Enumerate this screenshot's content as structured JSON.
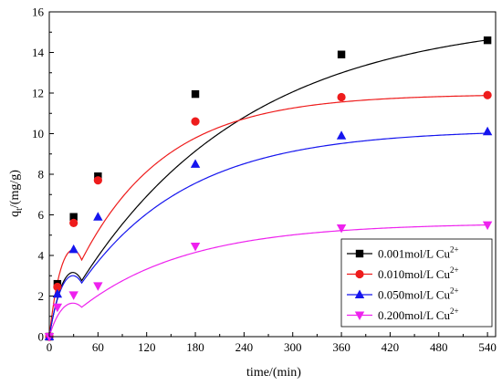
{
  "chart_data": {
    "type": "scatter",
    "xlabel": "time/(min)",
    "ylabel_main": "q",
    "ylabel_sub": "t",
    "ylabel_rest": "/(mg/g)",
    "xlim": [
      0,
      550
    ],
    "ylim": [
      0,
      16
    ],
    "xticks": [
      0,
      60,
      120,
      180,
      240,
      300,
      360,
      420,
      480,
      540
    ],
    "yticks": [
      0,
      2,
      4,
      6,
      8,
      10,
      12,
      14,
      16
    ],
    "grid": false,
    "legend_position": "bottom-right",
    "series": [
      {
        "name_main": "0.001mol/L Cu",
        "name_sup": "2+",
        "marker": "square",
        "color": "#000000",
        "points": [
          [
            0,
            0
          ],
          [
            10,
            2.6
          ],
          [
            30,
            5.9
          ],
          [
            60,
            7.9
          ],
          [
            180,
            11.95
          ],
          [
            360,
            13.9
          ],
          [
            540,
            14.6
          ]
        ],
        "fit_qe": 15.8,
        "fit_k": 0.0048
      },
      {
        "name_main": "0.010mol/L Cu",
        "name_sup": "2+",
        "marker": "circle",
        "color": "#ee1c1c",
        "points": [
          [
            0,
            0
          ],
          [
            10,
            2.45
          ],
          [
            30,
            5.6
          ],
          [
            60,
            7.7
          ],
          [
            180,
            10.6
          ],
          [
            360,
            11.8
          ],
          [
            540,
            11.9
          ]
        ],
        "fit_qe": 11.95,
        "fit_k": 0.0095
      },
      {
        "name_main": "0.050mol/L Cu",
        "name_sup": "2+",
        "marker": "triangle-up",
        "color": "#1515ee",
        "points": [
          [
            0,
            0
          ],
          [
            10,
            2.1
          ],
          [
            30,
            4.3
          ],
          [
            60,
            5.9
          ],
          [
            180,
            8.5
          ],
          [
            360,
            9.9
          ],
          [
            540,
            10.1
          ]
        ],
        "fit_qe": 10.2,
        "fit_k": 0.0075
      },
      {
        "name_main": "0.200mol/L Cu",
        "name_sup": "2+",
        "marker": "triangle-down",
        "color": "#ee22ee",
        "points": [
          [
            0,
            0
          ],
          [
            10,
            1.45
          ],
          [
            30,
            2.05
          ],
          [
            60,
            2.5
          ],
          [
            180,
            4.45
          ],
          [
            360,
            5.35
          ],
          [
            540,
            5.5
          ]
        ],
        "fit_qe": 5.6,
        "fit_k": 0.0075
      }
    ]
  }
}
